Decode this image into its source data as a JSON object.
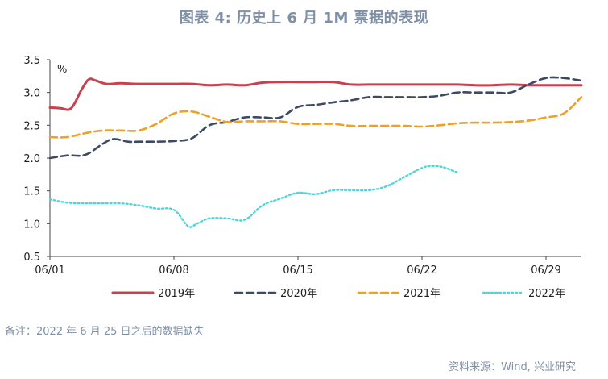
{
  "chart_data": {
    "type": "line",
    "title": "图表 4:  历史上 6 月 1M 票据的表现",
    "ylabel": "%",
    "ylim": [
      0.5,
      3.5
    ],
    "yticks": [
      "3.5",
      "3.0",
      "2.5",
      "2.0",
      "1.5",
      "1.0",
      "0.5"
    ],
    "xlim": [
      1,
      31
    ],
    "xticks": [
      {
        "day": 1,
        "label": "06/01"
      },
      {
        "day": 8,
        "label": "06/08"
      },
      {
        "day": 15,
        "label": "06/15"
      },
      {
        "day": 22,
        "label": "06/22"
      },
      {
        "day": 29,
        "label": "06/29"
      }
    ],
    "series": [
      {
        "name": "2019年",
        "color": "#c8414f",
        "style": "solid",
        "x": [
          1,
          1.6,
          2.2,
          2.8,
          3.2,
          3.6,
          4.2,
          5,
          6,
          8,
          9,
          10,
          11,
          12,
          13,
          14,
          15,
          16,
          17,
          18,
          19,
          20,
          21,
          22,
          23,
          24,
          25,
          26,
          27,
          28,
          29,
          30,
          31
        ],
        "y": [
          2.77,
          2.76,
          2.76,
          3.05,
          3.2,
          3.18,
          3.13,
          3.14,
          3.13,
          3.13,
          3.13,
          3.11,
          3.12,
          3.11,
          3.15,
          3.16,
          3.16,
          3.16,
          3.16,
          3.12,
          3.12,
          3.12,
          3.12,
          3.12,
          3.12,
          3.12,
          3.11,
          3.11,
          3.12,
          3.11,
          3.11,
          3.11,
          3.11
        ]
      },
      {
        "name": "2020年",
        "color": "#3d4a66",
        "style": "dashed",
        "x": [
          1,
          2,
          3,
          4,
          4.6,
          5.4,
          6,
          7,
          8,
          9,
          10,
          11,
          12,
          13,
          14,
          15,
          16,
          17,
          18,
          19,
          20,
          21,
          22,
          23,
          24,
          25,
          26,
          27,
          28,
          29,
          30,
          31
        ],
        "y": [
          2.0,
          2.04,
          2.05,
          2.22,
          2.29,
          2.25,
          2.25,
          2.25,
          2.26,
          2.3,
          2.5,
          2.55,
          2.62,
          2.62,
          2.62,
          2.78,
          2.81,
          2.85,
          2.88,
          2.93,
          2.93,
          2.93,
          2.93,
          2.95,
          3.0,
          3.0,
          3.0,
          3.0,
          3.12,
          3.22,
          3.22,
          3.18
        ]
      },
      {
        "name": "2021年",
        "color": "#f0a024",
        "style": "dashed",
        "x": [
          1,
          2,
          3,
          4,
          5,
          6,
          7,
          8,
          9,
          10,
          11,
          12,
          13,
          14,
          15,
          16,
          17,
          18,
          19,
          20,
          21,
          22,
          23,
          24,
          25,
          26,
          27,
          28,
          29,
          30,
          31
        ],
        "y": [
          2.32,
          2.32,
          2.38,
          2.42,
          2.42,
          2.42,
          2.52,
          2.68,
          2.71,
          2.63,
          2.55,
          2.56,
          2.56,
          2.56,
          2.52,
          2.52,
          2.52,
          2.49,
          2.49,
          2.49,
          2.49,
          2.48,
          2.5,
          2.53,
          2.54,
          2.54,
          2.55,
          2.57,
          2.62,
          2.68,
          2.93
        ]
      },
      {
        "name": "2022年",
        "color": "#4fd5d8",
        "style": "dotted",
        "x": [
          1,
          2,
          3,
          4,
          5,
          6,
          7,
          8,
          8.8,
          9.3,
          10,
          11,
          12,
          13,
          14,
          15,
          16,
          17,
          18,
          19,
          20,
          21,
          22,
          22.6,
          23.2,
          24
        ],
        "y": [
          1.37,
          1.32,
          1.31,
          1.31,
          1.31,
          1.28,
          1.23,
          1.21,
          0.96,
          1.0,
          1.08,
          1.08,
          1.06,
          1.28,
          1.38,
          1.47,
          1.45,
          1.51,
          1.51,
          1.51,
          1.57,
          1.71,
          1.85,
          1.88,
          1.86,
          1.78
        ]
      }
    ]
  },
  "note": "备注：2022 年 6 月 25 日之后的数据缺失",
  "source": "资料来源：Wind, 兴业研究"
}
